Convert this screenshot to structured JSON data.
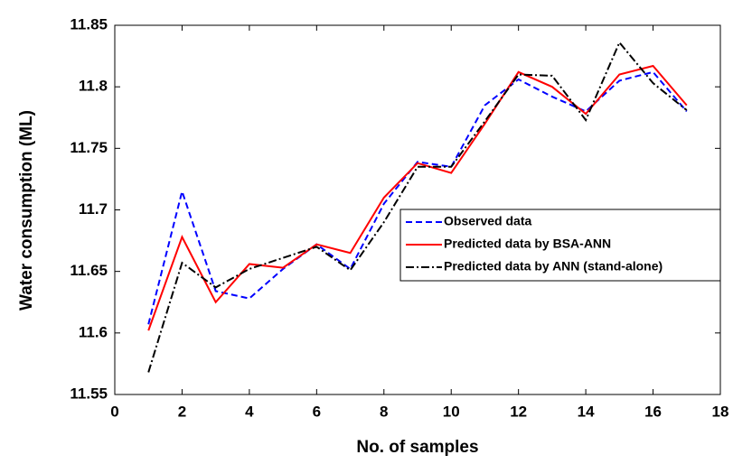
{
  "chart_data": {
    "type": "line",
    "xlabel": "No. of samples",
    "ylabel": "Water consumption (ML)",
    "x": [
      1,
      2,
      3,
      4,
      5,
      6,
      7,
      8,
      9,
      10,
      11,
      12,
      13,
      14,
      15,
      16,
      17
    ],
    "series": [
      {
        "name": "Observed data",
        "color": "#0000ff",
        "dash": "dashed",
        "values": [
          11.607,
          11.715,
          11.634,
          11.628,
          11.652,
          11.672,
          11.652,
          11.705,
          11.739,
          11.735,
          11.785,
          11.806,
          11.792,
          11.78,
          11.805,
          11.812,
          11.78
        ]
      },
      {
        "name": "Predicted data by BSA-ANN",
        "color": "#ff0000",
        "dash": "solid",
        "values": [
          11.602,
          11.678,
          11.625,
          11.656,
          11.653,
          11.672,
          11.665,
          11.71,
          11.738,
          11.73,
          11.77,
          11.812,
          11.8,
          11.778,
          11.81,
          11.817,
          11.785
        ]
      },
      {
        "name": "Predicted data by ANN (stand-alone)",
        "color": "#000000",
        "dash": "dashdot",
        "values": [
          11.568,
          11.657,
          11.637,
          11.652,
          11.661,
          11.67,
          11.651,
          11.69,
          11.735,
          11.735,
          11.772,
          11.81,
          11.809,
          11.773,
          11.836,
          11.803,
          11.781
        ]
      }
    ],
    "xlim": [
      0,
      18
    ],
    "xticks": [
      0,
      2,
      4,
      6,
      8,
      10,
      12,
      14,
      16,
      18
    ],
    "ylim": [
      11.55,
      11.85
    ],
    "yticks": [
      11.55,
      11.6,
      11.65,
      11.7,
      11.75,
      11.8,
      11.85
    ],
    "legend": "right"
  }
}
